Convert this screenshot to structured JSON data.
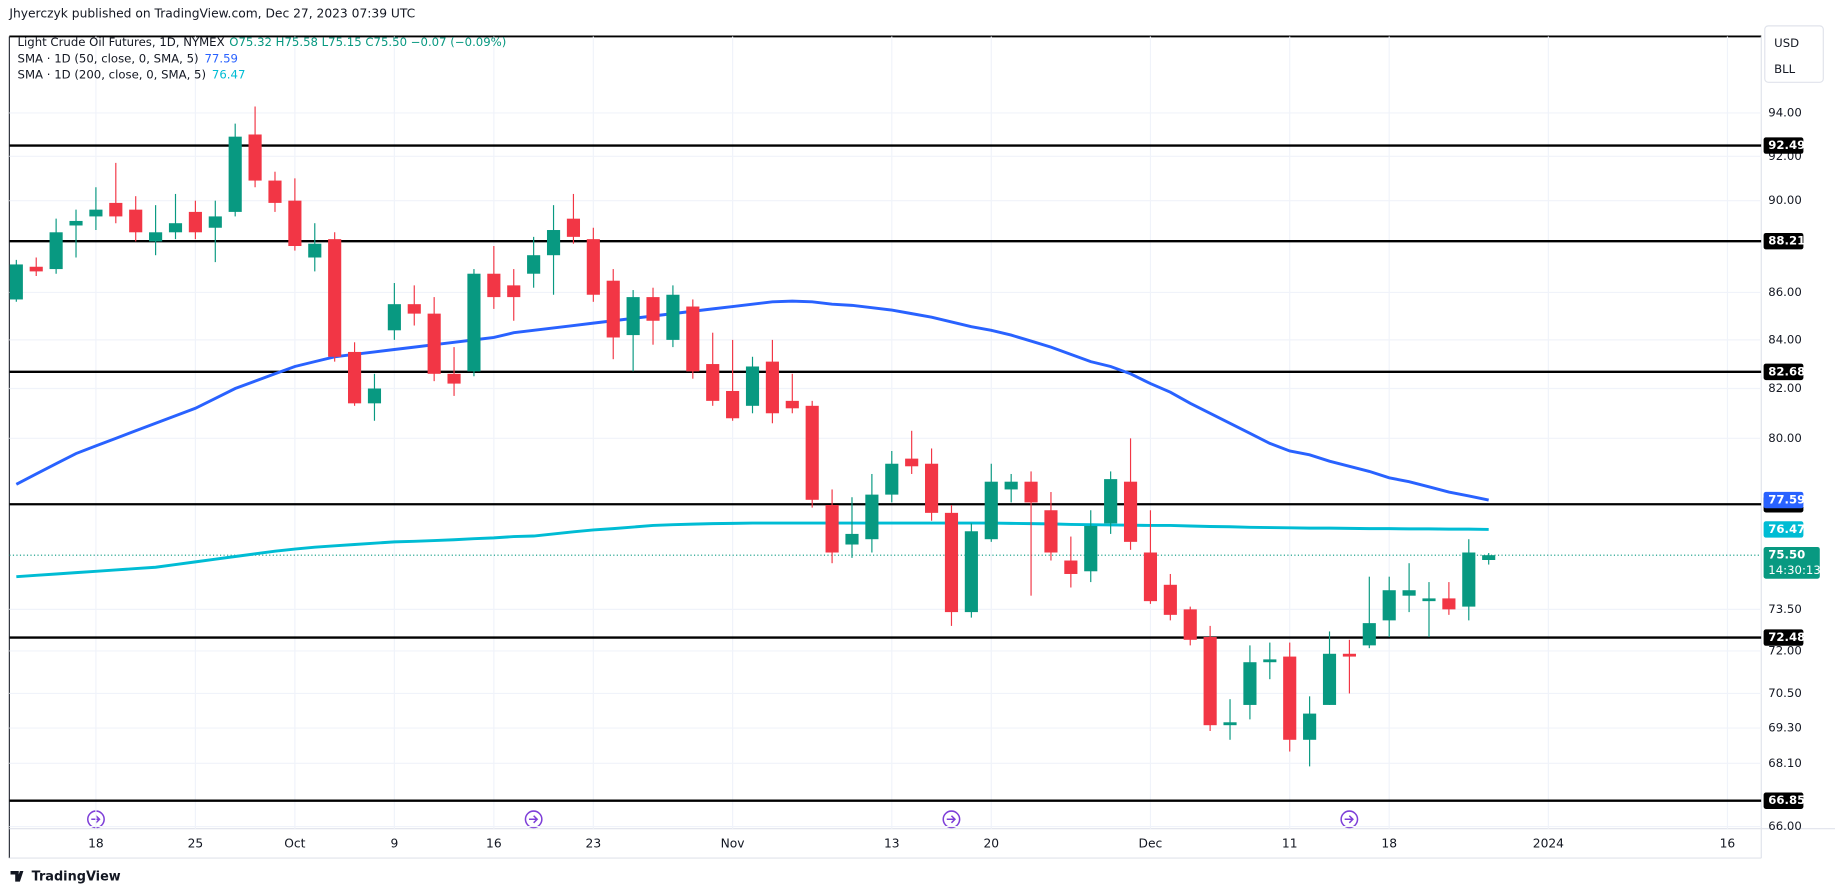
{
  "chart_data": {
    "type": "candlestick",
    "header": "Jhyerczyk published on TradingView.com, Dec 27, 2023 07:39 UTC",
    "symbol": "Light Crude Oil Futures, 1D, NYMEX",
    "ohlc_text": "O75.32 H75.58 L75.15 C75.50 −0.07 (−0.09%)",
    "currency": "USD",
    "unit": "BLL",
    "footer": "TradingView",
    "log_scale": true,
    "grid": true,
    "up_color": "#089981",
    "down_color": "#f23645",
    "ylim": [
      65.93,
      97.63
    ],
    "yticks": [
      {
        "value": 94,
        "label": "94.00"
      },
      {
        "value": 92,
        "label": "92.00"
      },
      {
        "value": 90,
        "label": "90.00"
      },
      {
        "value": 86,
        "label": "86.00"
      },
      {
        "value": 84,
        "label": "84.00"
      },
      {
        "value": 82,
        "label": "82.00"
      },
      {
        "value": 80,
        "label": "80.00"
      },
      {
        "value": 73.5,
        "label": "73.50"
      },
      {
        "value": 72,
        "label": "72.00"
      },
      {
        "value": 70.5,
        "label": "70.50"
      },
      {
        "value": 69.3,
        "label": "69.30"
      },
      {
        "value": 68.1,
        "label": "68.10"
      },
      {
        "value": 66,
        "label": "66.00"
      }
    ],
    "xlim": [
      -0.35,
      87.7
    ],
    "xticks": [
      {
        "value": 4,
        "label": "18"
      },
      {
        "value": 9,
        "label": "25"
      },
      {
        "value": 14,
        "label": "Oct"
      },
      {
        "value": 19,
        "label": "9"
      },
      {
        "value": 24,
        "label": "16"
      },
      {
        "value": 29,
        "label": "23"
      },
      {
        "value": 36,
        "label": "Nov"
      },
      {
        "value": 44,
        "label": "13"
      },
      {
        "value": 49,
        "label": "20"
      },
      {
        "value": 57,
        "label": "Dec"
      },
      {
        "value": 64,
        "label": "11"
      },
      {
        "value": 69,
        "label": "18"
      },
      {
        "value": 77,
        "label": "2024"
      },
      {
        "value": 86,
        "label": "16"
      }
    ],
    "open": [
      85.7,
      87.1,
      87.0,
      88.9,
      89.3,
      89.9,
      89.6,
      88.2,
      88.6,
      89.5,
      88.8,
      89.5,
      93.0,
      90.9,
      90.0,
      87.5,
      88.3,
      83.5,
      81.4,
      84.4,
      85.5,
      85.1,
      82.6,
      82.7,
      86.8,
      86.3,
      86.8,
      87.6,
      89.2,
      88.3,
      86.5,
      84.2,
      85.8,
      84.0,
      85.4,
      83.0,
      81.9,
      81.3,
      83.1,
      81.5,
      81.3,
      77.4,
      75.9,
      76.1,
      77.8,
      79.2,
      79.0,
      77.1,
      73.4,
      76.1,
      78.0,
      78.3,
      77.2,
      75.3,
      74.9,
      76.7,
      78.3,
      75.6,
      74.4,
      73.5,
      72.5,
      69.4,
      70.1,
      71.6,
      71.8,
      68.9,
      70.1,
      71.9,
      72.2,
      73.1,
      74.0,
      73.8,
      73.9,
      73.6,
      75.32
    ],
    "high": [
      87.4,
      87.5,
      89.2,
      89.6,
      90.6,
      91.7,
      90.2,
      89.8,
      90.3,
      90.0,
      90.0,
      93.5,
      94.3,
      91.3,
      91.0,
      89.0,
      88.6,
      83.9,
      82.6,
      86.4,
      86.3,
      85.8,
      83.7,
      87.0,
      88.0,
      87.0,
      88.4,
      89.8,
      90.3,
      88.8,
      87.0,
      86.1,
      86.2,
      86.3,
      85.7,
      84.3,
      84.0,
      83.3,
      84.0,
      82.6,
      81.5,
      78.0,
      77.7,
      78.6,
      79.5,
      80.3,
      79.6,
      77.4,
      76.7,
      79.0,
      78.6,
      78.7,
      77.9,
      76.2,
      77.2,
      78.7,
      80.0,
      77.2,
      74.8,
      73.6,
      72.9,
      70.3,
      72.2,
      72.3,
      72.3,
      70.4,
      72.7,
      72.4,
      74.7,
      74.7,
      75.2,
      74.5,
      74.5,
      76.1,
      75.58
    ],
    "low": [
      85.6,
      86.7,
      86.8,
      87.5,
      88.7,
      89.0,
      88.2,
      87.6,
      88.3,
      88.3,
      87.3,
      89.3,
      90.6,
      89.5,
      87.8,
      86.9,
      83.1,
      81.3,
      80.7,
      84.0,
      84.6,
      82.3,
      81.7,
      82.5,
      85.3,
      84.8,
      86.2,
      85.9,
      88.1,
      85.6,
      83.2,
      82.7,
      83.8,
      83.7,
      82.4,
      81.3,
      80.7,
      81.0,
      80.6,
      81.0,
      77.3,
      75.2,
      75.4,
      75.6,
      77.5,
      78.6,
      76.8,
      72.9,
      73.2,
      76.0,
      77.5,
      74.0,
      75.3,
      74.3,
      74.5,
      76.3,
      75.7,
      73.7,
      73.1,
      72.2,
      69.2,
      68.9,
      69.6,
      71.0,
      68.5,
      68.0,
      70.1,
      70.5,
      72.1,
      72.5,
      73.4,
      72.5,
      73.3,
      73.1,
      75.15
    ],
    "close": [
      87.2,
      86.9,
      88.6,
      89.1,
      89.6,
      89.3,
      88.6,
      88.6,
      89.0,
      88.6,
      89.3,
      92.9,
      90.9,
      89.9,
      88.0,
      88.1,
      83.3,
      81.4,
      82.0,
      85.5,
      85.1,
      82.6,
      82.2,
      86.8,
      85.8,
      85.8,
      87.6,
      88.7,
      88.4,
      85.9,
      84.1,
      85.8,
      84.8,
      85.9,
      82.7,
      81.5,
      80.8,
      82.9,
      81.0,
      81.2,
      77.6,
      75.6,
      76.3,
      77.8,
      79.0,
      78.9,
      77.1,
      73.4,
      76.4,
      78.3,
      78.3,
      77.5,
      75.6,
      74.8,
      76.6,
      78.4,
      76.0,
      73.8,
      73.3,
      72.4,
      69.4,
      69.5,
      71.6,
      71.7,
      68.9,
      69.8,
      71.9,
      71.8,
      73.0,
      74.2,
      74.2,
      73.9,
      73.5,
      75.6,
      75.5
    ],
    "series": [
      {
        "name": "SMA · 1D (50, close, 0, SMA, 5)",
        "color": "#2962ff",
        "values": [
          78.2,
          78.6,
          79.0,
          79.4,
          79.7,
          80.0,
          80.3,
          80.6,
          80.9,
          81.2,
          81.6,
          82.0,
          82.3,
          82.6,
          82.9,
          83.1,
          83.3,
          83.4,
          83.5,
          83.6,
          83.7,
          83.8,
          83.9,
          84.0,
          84.1,
          84.3,
          84.4,
          84.5,
          84.6,
          84.7,
          84.8,
          84.9,
          85.0,
          85.1,
          85.2,
          85.3,
          85.4,
          85.5,
          85.6,
          85.63,
          85.6,
          85.5,
          85.45,
          85.35,
          85.25,
          85.1,
          84.95,
          84.75,
          84.55,
          84.4,
          84.2,
          83.95,
          83.7,
          83.4,
          83.1,
          82.9,
          82.6,
          82.2,
          81.85,
          81.4,
          81.0,
          80.6,
          80.2,
          79.8,
          79.5,
          79.35,
          79.1,
          78.9,
          78.7,
          78.45,
          78.3,
          78.1,
          77.9,
          77.75,
          77.59
        ]
      },
      {
        "name": "SMA · 1D (200, close, 0, SMA, 5)",
        "color": "#00bcd4",
        "values": [
          74.7,
          74.75,
          74.8,
          74.85,
          74.9,
          74.95,
          75.0,
          75.05,
          75.15,
          75.25,
          75.35,
          75.45,
          75.55,
          75.65,
          75.73,
          75.8,
          75.85,
          75.9,
          75.95,
          76.0,
          76.02,
          76.05,
          76.08,
          76.12,
          76.15,
          76.2,
          76.22,
          76.3,
          76.38,
          76.45,
          76.5,
          76.56,
          76.62,
          76.65,
          76.67,
          76.69,
          76.7,
          76.71,
          76.71,
          76.71,
          76.71,
          76.71,
          76.71,
          76.71,
          76.71,
          76.71,
          76.71,
          76.71,
          76.71,
          76.71,
          76.7,
          76.69,
          76.68,
          76.66,
          76.65,
          76.64,
          76.63,
          76.62,
          76.62,
          76.6,
          76.58,
          76.57,
          76.55,
          76.54,
          76.53,
          76.52,
          76.52,
          76.51,
          76.5,
          76.5,
          76.49,
          76.49,
          76.48,
          76.48,
          76.47
        ]
      }
    ],
    "levels": [
      92.49,
      88.21,
      82.68,
      77.43,
      72.48,
      66.85
    ],
    "level_color": "#000000",
    "last_price": {
      "value": 75.5,
      "label": "75.50",
      "countdown": "14:30:13"
    }
  }
}
